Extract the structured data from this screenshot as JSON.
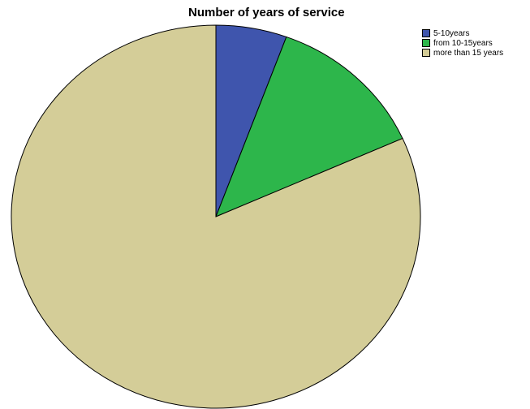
{
  "chart_data": {
    "type": "pie",
    "title": "Number of years of service",
    "categories": [
      "5-10years",
      "from 10-15years",
      "more than 15 years"
    ],
    "values": [
      5.6,
      12.7,
      81.7
    ],
    "colors": [
      "#3f55ad",
      "#2db64b",
      "#d4cd98"
    ],
    "legend_position": "top-right"
  }
}
